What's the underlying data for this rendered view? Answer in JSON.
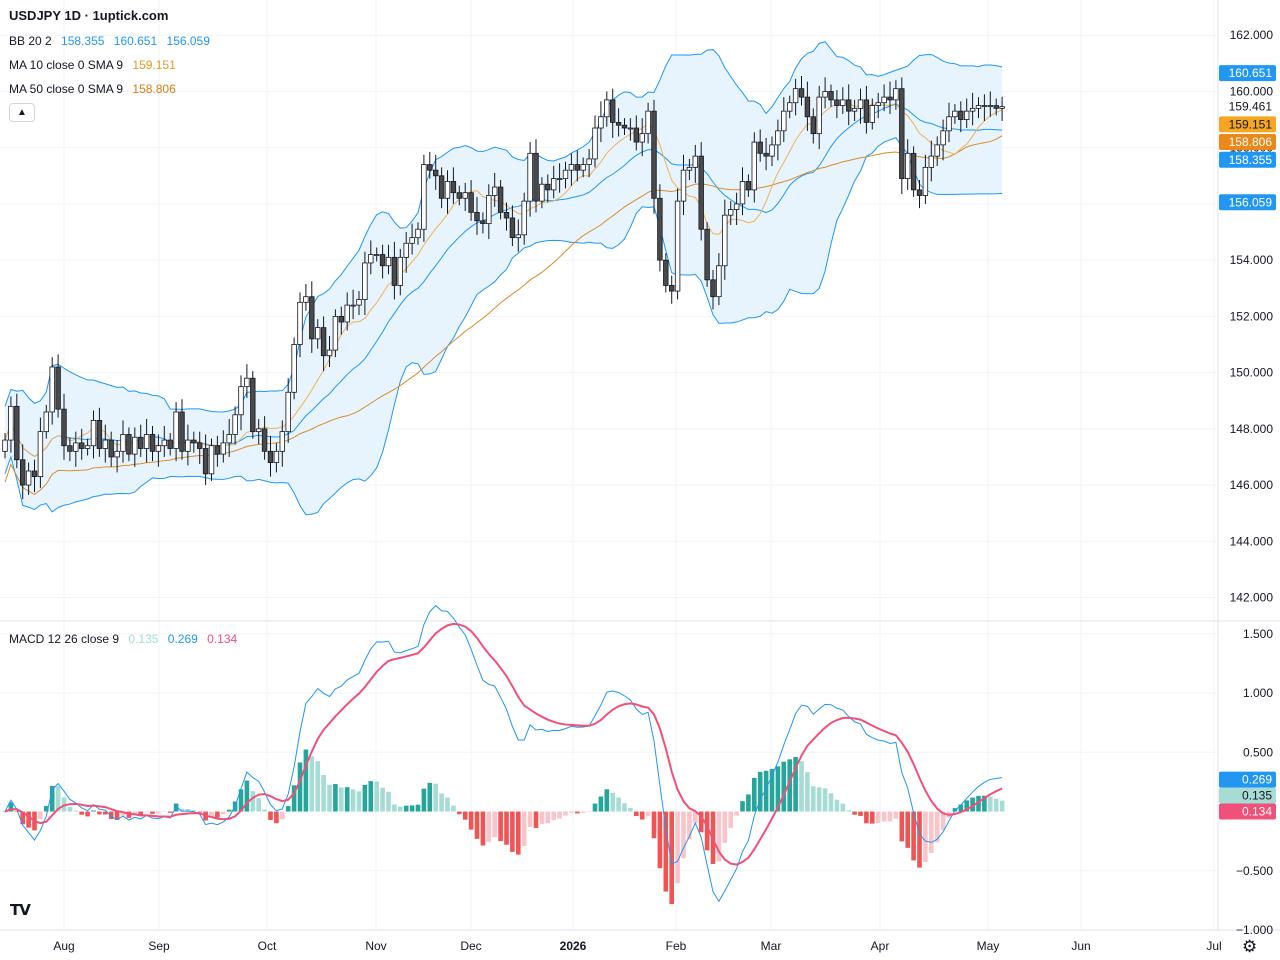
{
  "header": {
    "symbol_title": "USDJPY 1D · 1uptick.com"
  },
  "indicators": {
    "bb": {
      "label": "BB 20 2",
      "basis": "158.355",
      "upper": "160.651",
      "lower": "156.059",
      "color": "#2196f3"
    },
    "ma10": {
      "label": "MA 10 close 0 SMA 9",
      "value": "159.151",
      "color": "#f0a63c"
    },
    "ma50": {
      "label": "MA 50 close 0 SMA 9",
      "value": "158.806",
      "color": "#e88e1a"
    },
    "macd": {
      "label": "MACD 12 26 close 9",
      "hist": "0.135",
      "macd": "0.269",
      "signal": "0.134"
    }
  },
  "colors": {
    "up": "#ffffff",
    "down": "#4a4a4a",
    "wick": "#131722",
    "band": "#e3f2fd",
    "bb": "#2196f3",
    "ma10": "#f0b254",
    "ma50": "#d98c2b",
    "macd": "#2196f3",
    "signal": "#f0507a",
    "hist_up_strong": "#26a69a",
    "hist_up_weak": "#a6dcd4",
    "hist_dn_strong": "#f05454",
    "hist_dn_weak": "#f9c5cb"
  },
  "price_axis": {
    "ticks": [
      "142.000",
      "144.000",
      "146.000",
      "148.000",
      "150.000",
      "152.000",
      "154.000",
      "156.000",
      "158.000",
      "160.000",
      "162.000"
    ]
  },
  "price_tags": [
    {
      "text": "160.651",
      "bg": "#2196f3",
      "fg": "#ffffff",
      "value": 160.651
    },
    {
      "text": "159.461",
      "bg": "#ffffff",
      "fg": "#131722",
      "value": 159.461
    },
    {
      "text": "159.151",
      "bg": "#f5a623",
      "fg": "#131722",
      "value": 159.151
    },
    {
      "text": "158.806",
      "bg": "#e8891a",
      "fg": "#ffffff",
      "value": 158.806
    },
    {
      "text": "158.355",
      "bg": "#2196f3",
      "fg": "#ffffff",
      "value": 158.355
    },
    {
      "text": "156.059",
      "bg": "#2196f3",
      "fg": "#ffffff",
      "value": 156.059
    }
  ],
  "macd_axis": {
    "ticks": [
      "1.500",
      "1.000",
      "0.500",
      "−0.500",
      "−1.000"
    ]
  },
  "macd_tags": [
    {
      "text": "0.269",
      "bg": "#2196f3",
      "fg": "#ffffff",
      "value": 0.269
    },
    {
      "text": "0.135",
      "bg": "#a6dcd4",
      "fg": "#131722",
      "value": 0.135
    },
    {
      "text": "0.134",
      "bg": "#f0507a",
      "fg": "#ffffff",
      "value": 0.134
    }
  ],
  "time_axis": {
    "labels": [
      "Aug",
      "Sep",
      "Oct",
      "Nov",
      "Dec",
      "2026",
      "Feb",
      "Mar",
      "Apr",
      "May",
      "Jun",
      "Jul"
    ]
  },
  "chart_data": {
    "type": "line",
    "title": "USDJPY 1D · 1uptick.com",
    "ylim": [
      141.2,
      162.4
    ],
    "close_series": [
      147.6,
      148.8,
      146.9,
      146.0,
      146.5,
      146.3,
      147.9,
      148.6,
      150.2,
      148.7,
      147.4,
      147.2,
      147.5,
      147.3,
      147.4,
      148.3,
      147.3,
      147.6,
      147.0,
      147.2,
      147.8,
      147.1,
      147.7,
      147.3,
      147.8,
      147.2,
      147.4,
      147.6,
      147.3,
      148.6,
      147.2,
      147.6,
      147.5,
      147.3,
      146.4,
      147.4,
      147.1,
      147.5,
      147.8,
      148.5,
      149.5,
      149.8,
      147.9,
      148.0,
      147.2,
      146.8,
      147.2,
      147.9,
      149.3,
      151.0,
      152.5,
      152.7,
      151.2,
      151.6,
      150.6,
      150.8,
      152.0,
      151.8,
      152.4,
      152.4,
      152.6,
      153.9,
      154.2,
      154.2,
      153.8,
      154.1,
      153.1,
      154.1,
      154.6,
      154.8,
      155.1,
      157.4,
      157.2,
      157.0,
      156.2,
      156.8,
      156.4,
      156.2,
      156.4,
      155.7,
      155.4,
      155.3,
      156.3,
      156.6,
      155.7,
      155.5,
      154.8,
      154.9,
      156.1,
      157.8,
      156.1,
      156.7,
      156.5,
      156.9,
      156.9,
      157.2,
      157.4,
      157.2,
      157.4,
      157.6,
      158.7,
      159.1,
      159.7,
      158.9,
      158.8,
      158.7,
      158.7,
      158.2,
      158.5,
      159.3,
      156.2,
      154.0,
      153.1,
      152.9,
      156.1,
      157.2,
      157.3,
      157.7,
      155.1,
      153.3,
      152.7,
      153.8,
      155.6,
      155.8,
      156.0,
      156.8,
      156.5,
      158.2,
      157.8,
      157.7,
      158.1,
      158.6,
      159.3,
      159.6,
      160.1,
      159.8,
      159.1,
      158.5,
      159.8,
      160.0,
      159.7,
      159.5,
      159.7,
      159.3,
      159.4,
      159.7,
      158.9,
      159.5,
      159.6,
      159.8,
      159.7,
      160.1,
      156.9,
      157.8,
      156.5,
      156.3,
      157.3,
      157.7,
      158.1,
      158.6,
      159.1,
      159.3,
      159.0,
      159.3,
      159.4,
      159.5,
      159.5,
      159.5,
      159.4,
      159.46
    ],
    "ma10": {
      "name": "MA 10 close 0 SMA 9",
      "last": 159.151
    },
    "ma50": {
      "name": "MA 50 close 0 SMA 9",
      "last": 158.806
    },
    "bb": {
      "name": "BB 20 2",
      "basis": 158.355,
      "upper": 160.651,
      "lower": 156.059
    },
    "macd": {
      "name": "MACD 12 26 close 9",
      "macd": 0.269,
      "signal": 0.134,
      "histogram": 0.135,
      "ylim": [
        -1.0,
        1.6
      ]
    }
  }
}
